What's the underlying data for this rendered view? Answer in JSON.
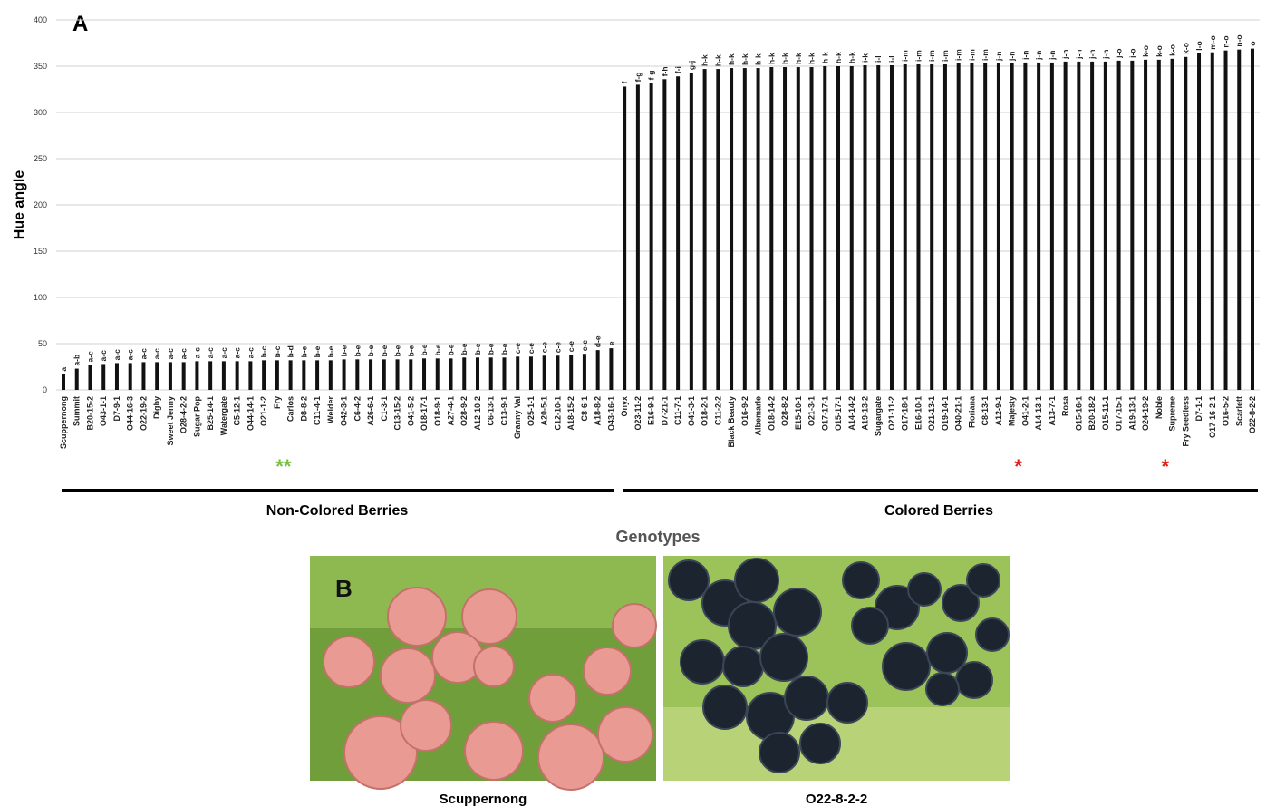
{
  "panel_a": "A",
  "panel_b": "B",
  "chart_data": {
    "type": "bar",
    "ylabel": "Hue angle",
    "xlabel": "Genotypes",
    "color": "#111111",
    "grid": true,
    "ylim": [
      0,
      400
    ],
    "yticks": [
      0,
      50,
      100,
      150,
      200,
      250,
      300,
      350,
      400
    ],
    "categories": [
      "Scuppernong",
      "Summit",
      "B20-15-2",
      "O43-1-1",
      "D7-9-1",
      "O44-16-3",
      "O22-19-2",
      "Digby",
      "Sweet Jenny",
      "O28-4-2-2",
      "Sugar Pop",
      "B25-14-1",
      "Watergate",
      "C5-12-1",
      "O44-14-1",
      "O21-1-2",
      "Fry",
      "Carlos",
      "D8-8-2",
      "C11-4-1",
      "Welder",
      "O42-3-1",
      "C6-4-2",
      "A26-6-1",
      "C1-3-1",
      "C13-15-2",
      "O41-5-2",
      "O18-17-1",
      "O18-9-1",
      "A27-4-1",
      "O28-9-2",
      "A12-10-2",
      "C6-13-1",
      "C13-9-1",
      "Granny Val",
      "O25-1-1",
      "A20-5-1",
      "C12-10-1",
      "A18-15-2",
      "C8-6-1",
      "A18-8-2",
      "O43-16-1",
      "Onyx",
      "O23-11-2",
      "E16-9-1",
      "D7-21-1",
      "C11-7-1",
      "O41-3-1",
      "O18-2-1",
      "C11-2-2",
      "Black Beauty",
      "O16-9-2",
      "Albemarle",
      "O18-14-2",
      "O28-8-2",
      "E15-10-1",
      "O21-3-1",
      "O17-17-1",
      "O15-17-1",
      "A14-14-2",
      "A19-13-2",
      "Sugargate",
      "O21-11-2",
      "O17-18-1",
      "E16-10-1",
      "O21-13-1",
      "O19-14-1",
      "O40-21-1",
      "Floriana",
      "C8-13-1",
      "A12-9-1",
      "Majesty",
      "O41-2-1",
      "A14-13-1",
      "A13-7-1",
      "Rosa",
      "O15-16-1",
      "B20-18-2",
      "O15-11-1",
      "O17-15-1",
      "A19-13-1",
      "O24-19-2",
      "Noble",
      "Supreme",
      "Fry Seedless",
      "D7-1-1",
      "O17-16-2-1",
      "O16-5-2",
      "Scarlett",
      "O22-8-2-2"
    ],
    "values": [
      17,
      23,
      27,
      28,
      29,
      29,
      30,
      30,
      30,
      30,
      31,
      31,
      31,
      31,
      31,
      32,
      32,
      32,
      32,
      32,
      32,
      33,
      33,
      33,
      33,
      33,
      33,
      34,
      34,
      34,
      35,
      35,
      35,
      35,
      36,
      36,
      37,
      37,
      38,
      39,
      43,
      45,
      328,
      330,
      332,
      336,
      339,
      343,
      347,
      347,
      348,
      348,
      348,
      349,
      349,
      349,
      349,
      350,
      350,
      350,
      351,
      351,
      351,
      352,
      352,
      352,
      352,
      353,
      353,
      353,
      353,
      353,
      354,
      354,
      354,
      355,
      355,
      355,
      355,
      356,
      356,
      357,
      357,
      358,
      360,
      364,
      365,
      367,
      368,
      369
    ],
    "letters": [
      "a",
      "a-b",
      "a-c",
      "a-c",
      "a-c",
      "a-c",
      "a-c",
      "a-c",
      "a-c",
      "a-c",
      "a-c",
      "a-c",
      "a-c",
      "a-c",
      "a-c",
      "b-c",
      "b-c",
      "b-d",
      "b-e",
      "b-e",
      "b-e",
      "b-e",
      "b-e",
      "b-e",
      "b-e",
      "b-e",
      "b-e",
      "b-e",
      "b-e",
      "b-e",
      "b-e",
      "b-e",
      "b-e",
      "b-e",
      "c-e",
      "c-e",
      "c-e",
      "c-e",
      "c-e",
      "c-e",
      "d-e",
      "e",
      "f",
      "f-g",
      "f-g",
      "f-h",
      "f-i",
      "g-j",
      "h-k",
      "h-k",
      "h-k",
      "h-k",
      "h-k",
      "h-k",
      "h-k",
      "h-k",
      "h-k",
      "h-k",
      "h-k",
      "h-k",
      "i-k",
      "i-l",
      "i-l",
      "i-m",
      "i-m",
      "i-m",
      "i-m",
      "i-m",
      "i-m",
      "i-m",
      "j-n",
      "j-n",
      "j-n",
      "j-n",
      "j-n",
      "j-n",
      "j-n",
      "j-n",
      "j-n",
      "j-o",
      "j-o",
      "k-o",
      "k-o",
      "k-o",
      "k-o",
      "l-o",
      "m-o",
      "n-o",
      "n-o",
      "o"
    ],
    "groups": [
      "Non-Colored Berries",
      "Colored Berries"
    ],
    "annotations": [
      {
        "text": "**",
        "category": "Fry",
        "color": "#7ac143"
      },
      {
        "text": "*",
        "category": "Majesty",
        "color": "#e0201b"
      },
      {
        "text": "*",
        "category": "Noble",
        "color": "#e0201b"
      }
    ]
  },
  "photos": [
    {
      "caption": "Scuppernong"
    },
    {
      "caption": "O22-8-2-2"
    }
  ]
}
